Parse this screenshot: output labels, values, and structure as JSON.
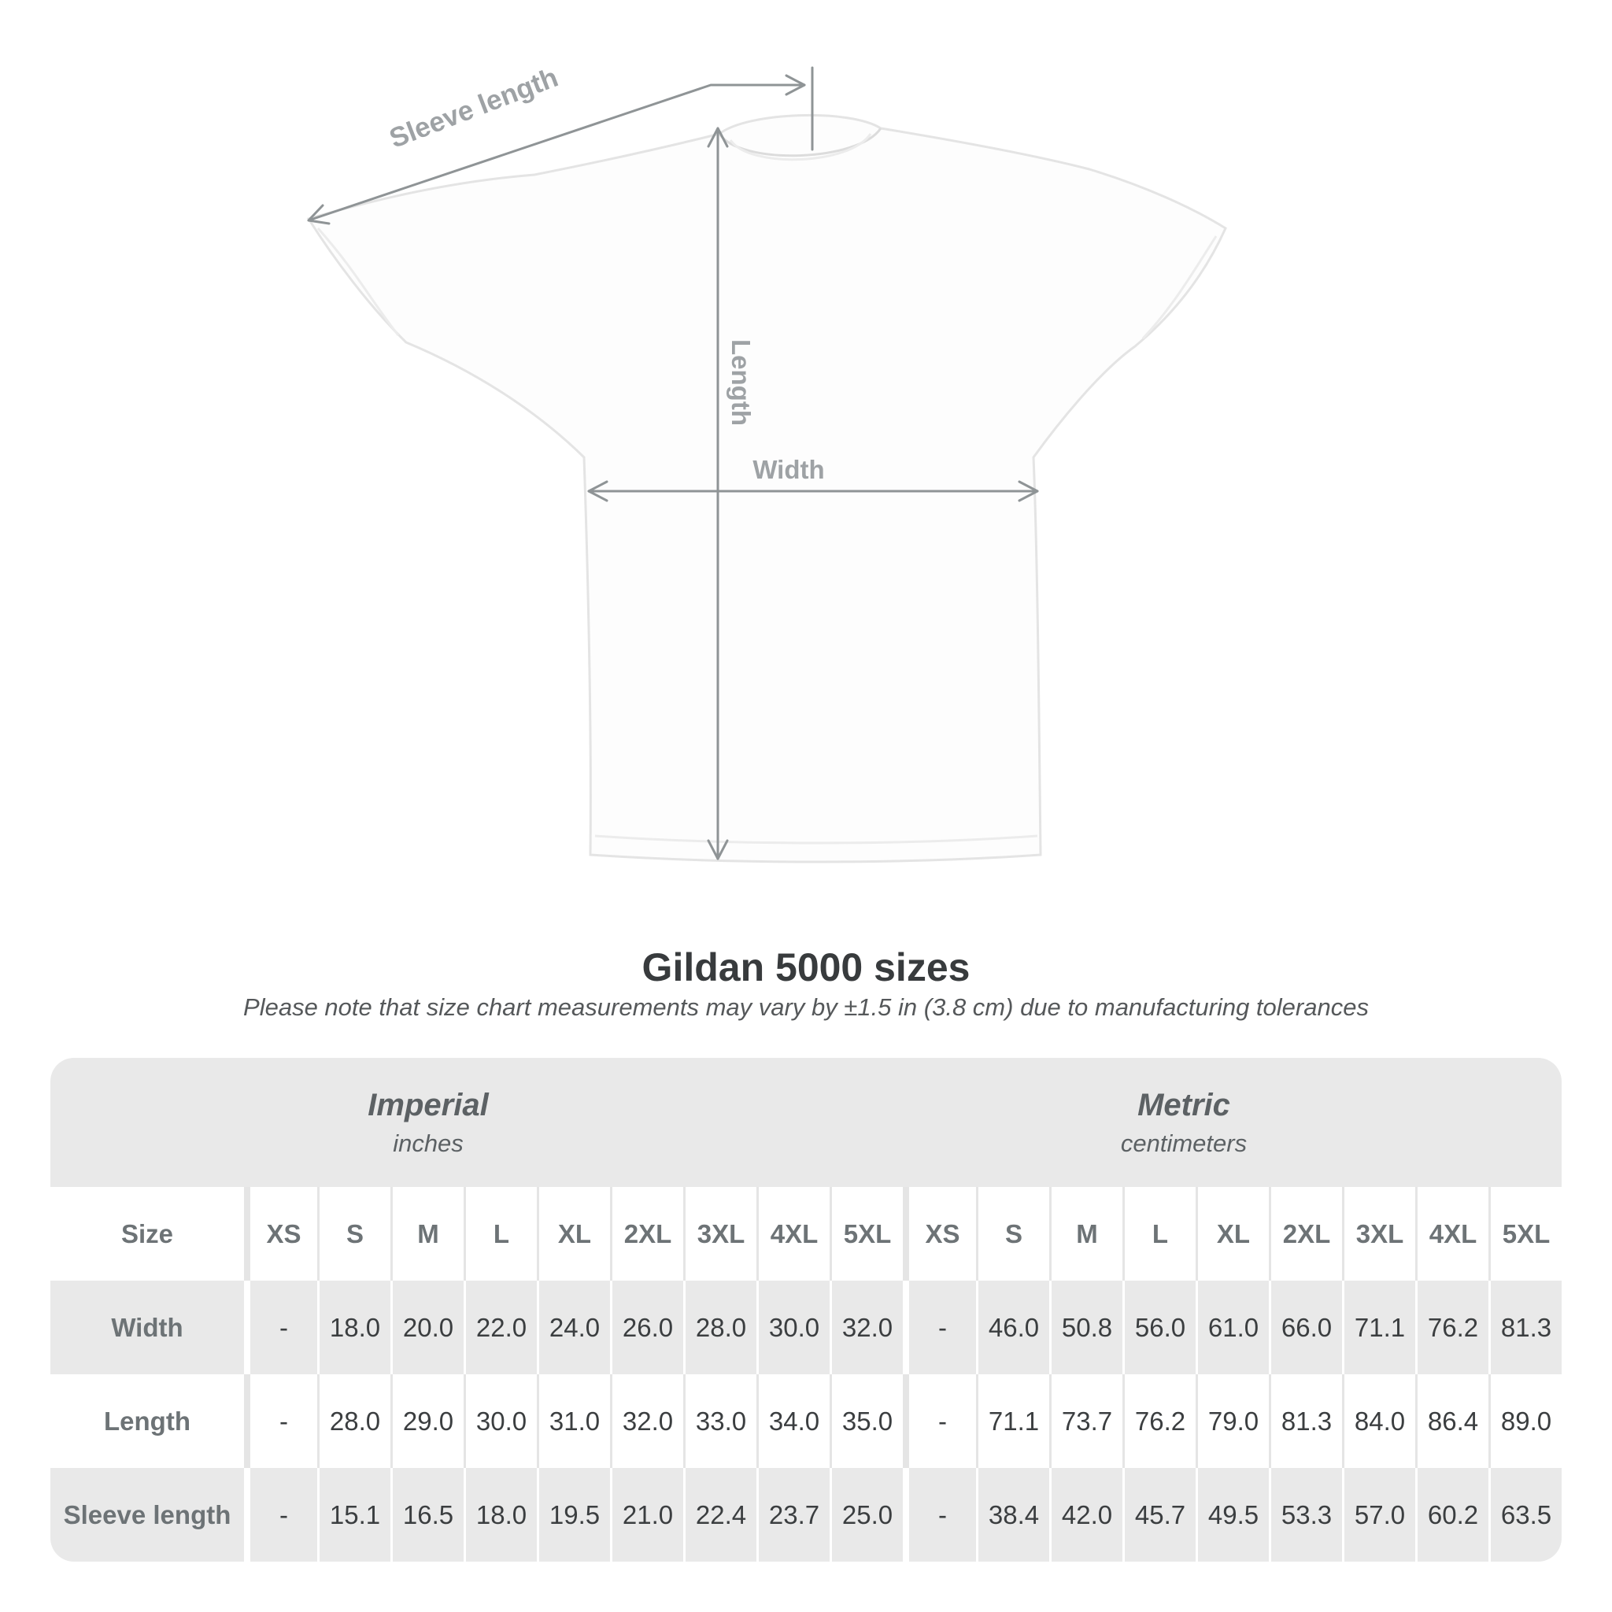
{
  "diagram": {
    "sleeve_label": "Sleeve length",
    "length_label": "Length",
    "width_label": "Width"
  },
  "colors": {
    "measure_line": "#8f9496",
    "diagram_label": "#9ea2a5",
    "band_bg": "#e9e9e9",
    "alt_row_bg": "#e9e9e9",
    "header_text": "#6d7376",
    "value_text": "#3b3e40"
  },
  "chart_data": {
    "type": "table",
    "title": "Gildan 5000 sizes",
    "note": "Please note that size chart measurements may vary by ±1.5 in (3.8 cm) due to manufacturing tolerances",
    "size_label": "Size",
    "sections": [
      {
        "title": "Imperial",
        "unit": "inches"
      },
      {
        "title": "Metric",
        "unit": "centimeters"
      }
    ],
    "columns": [
      "XS",
      "S",
      "M",
      "L",
      "XL",
      "2XL",
      "3XL",
      "4XL",
      "5XL"
    ],
    "rows": [
      {
        "label": "Width",
        "imperial": [
          "-",
          "18.0",
          "20.0",
          "22.0",
          "24.0",
          "26.0",
          "28.0",
          "30.0",
          "32.0"
        ],
        "metric": [
          "-",
          "46.0",
          "50.8",
          "56.0",
          "61.0",
          "66.0",
          "71.1",
          "76.2",
          "81.3"
        ]
      },
      {
        "label": "Length",
        "imperial": [
          "-",
          "28.0",
          "29.0",
          "30.0",
          "31.0",
          "32.0",
          "33.0",
          "34.0",
          "35.0"
        ],
        "metric": [
          "-",
          "71.1",
          "73.7",
          "76.2",
          "79.0",
          "81.3",
          "84.0",
          "86.4",
          "89.0"
        ]
      },
      {
        "label": "Sleeve length",
        "imperial": [
          "-",
          "15.1",
          "16.5",
          "18.0",
          "19.5",
          "21.0",
          "22.4",
          "23.7",
          "25.0"
        ],
        "metric": [
          "-",
          "38.4",
          "42.0",
          "45.7",
          "49.5",
          "53.3",
          "57.0",
          "60.2",
          "63.5"
        ]
      }
    ]
  }
}
